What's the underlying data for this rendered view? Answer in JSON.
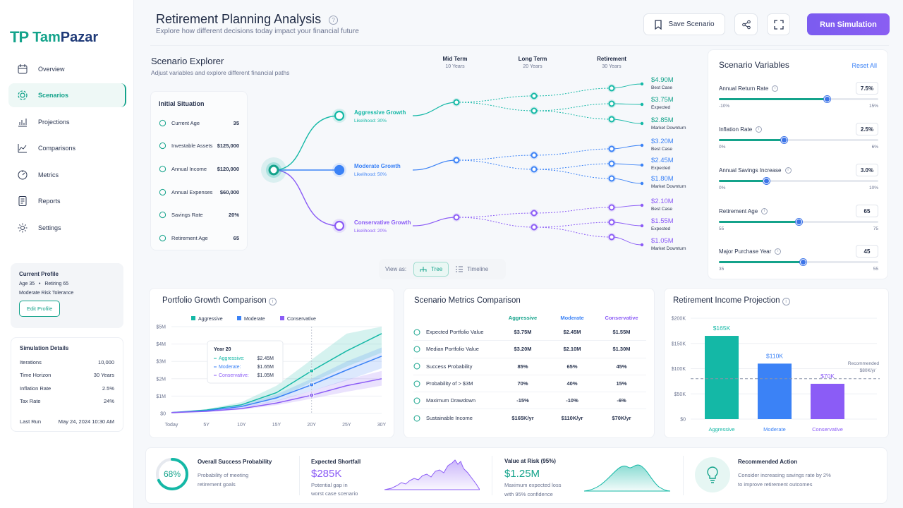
{
  "brand": {
    "mark": "TP",
    "name_a": "Tam",
    "name_b": "Pazar"
  },
  "sidebar": {
    "items": [
      {
        "label": "Overview",
        "icon": "calendar-icon"
      },
      {
        "label": "Scenarios",
        "icon": "gear-icon",
        "active": true
      },
      {
        "label": "Projections",
        "icon": "bar-chart-icon"
      },
      {
        "label": "Comparisons",
        "icon": "line-chart-icon"
      },
      {
        "label": "Metrics",
        "icon": "gauge-icon"
      },
      {
        "label": "Reports",
        "icon": "document-icon"
      },
      {
        "label": "Settings",
        "icon": "settings-icon"
      }
    ],
    "profile": {
      "title": "Current Profile",
      "age": "Age 35",
      "sep": "•",
      "retiring": "Retiring 65",
      "risk": "Moderate Risk Tolerance",
      "edit": "Edit Profile"
    },
    "sim": {
      "title": "Simulation Details",
      "rows": [
        {
          "label": "Iterations",
          "value": "10,000"
        },
        {
          "label": "Time Horizon",
          "value": "30 Years"
        },
        {
          "label": "Inflation Rate",
          "value": "2.5%"
        },
        {
          "label": "Tax Rate",
          "value": "24%"
        }
      ],
      "last_run_label": "Last Run",
      "last_run_value": "May 24, 2024   10:30 AM"
    }
  },
  "header": {
    "title": "Retirement Planning Analysis",
    "subtitle": "Explore how different decisions today impact your financial future",
    "save": "Save Scenario",
    "run": "Run Simulation"
  },
  "explorer": {
    "title": "Scenario Explorer",
    "subtitle": "Adjust variables and explore different financial paths",
    "columns": [
      {
        "label": "Mid Term",
        "sub": "10 Years"
      },
      {
        "label": "Long Term",
        "sub": "20 Years"
      },
      {
        "label": "Retirement",
        "sub": "30 Years"
      }
    ],
    "initial_title": "Initial Situation",
    "initial": [
      {
        "label": "Current Age",
        "value": "35",
        "icon": "clock-icon"
      },
      {
        "label": "Investable Assets",
        "value": "$125,000",
        "icon": "coins-icon"
      },
      {
        "label": "Annual Income",
        "value": "$120,000",
        "icon": "wallet-icon"
      },
      {
        "label": "Annual Expenses",
        "value": "$60,000",
        "icon": "expense-icon"
      },
      {
        "label": "Savings Rate",
        "value": "20%",
        "icon": "percent-icon"
      },
      {
        "label": "Retirement Age",
        "value": "65",
        "icon": "flag-icon"
      }
    ],
    "branches": [
      {
        "name": "Aggressive Growth",
        "likelihood": "Likelihood: 30%",
        "color": "#14b8a6"
      },
      {
        "name": "Moderate Growth",
        "likelihood": "Likelihood: 50%",
        "color": "#3b82f6"
      },
      {
        "name": "Conservative Growth",
        "likelihood": "Likelihood: 20%",
        "color": "#8b5cf6"
      }
    ],
    "outcomes": [
      {
        "value": "$4.90M",
        "label": "Best Case",
        "color": "#14a38b"
      },
      {
        "value": "$3.75M",
        "label": "Expected",
        "color": "#14a38b"
      },
      {
        "value": "$2.85M",
        "label": "Market Downturn",
        "color": "#14a38b"
      },
      {
        "value": "$3.20M",
        "label": "Best Case",
        "color": "#3b82f6"
      },
      {
        "value": "$2.45M",
        "label": "Expected",
        "color": "#3b82f6"
      },
      {
        "value": "$1.80M",
        "label": "Market Downturn",
        "color": "#3b82f6"
      },
      {
        "value": "$2.10M",
        "label": "Best Case",
        "color": "#8b5cf6"
      },
      {
        "value": "$1.55M",
        "label": "Expected",
        "color": "#8b5cf6"
      },
      {
        "value": "$1.05M",
        "label": "Market Downturn",
        "color": "#8b5cf6"
      }
    ],
    "view_as": "View as:",
    "view_tree": "Tree",
    "view_timeline": "Timeline"
  },
  "variables": {
    "title": "Scenario Variables",
    "reset": "Reset All",
    "items": [
      {
        "label": "Annual Return Rate",
        "value": "7.5%",
        "min": "-10%",
        "max": "15%",
        "level": 0.68
      },
      {
        "label": "Inflation Rate",
        "value": "2.5%",
        "min": "0%",
        "max": "6%",
        "level": 0.41
      },
      {
        "label": "Annual Savings Increase",
        "value": "3.0%",
        "min": "0%",
        "max": "10%",
        "level": 0.3
      },
      {
        "label": "Retirement Age",
        "value": "65",
        "min": "55",
        "max": "75",
        "level": 0.5
      },
      {
        "label": "Major Purchase Year",
        "value": "45",
        "min": "35",
        "max": "55",
        "level": 0.53
      }
    ]
  },
  "portfolio": {
    "title": "Portfolio Growth Comparison",
    "legend": [
      "Aggressive",
      "Moderate",
      "Conservative"
    ],
    "tooltip": {
      "title": "Year 20",
      "rows": [
        {
          "label": "Aggressive:",
          "value": "$2.45M"
        },
        {
          "label": "Moderate:",
          "value": "$1.65M"
        },
        {
          "label": "Conservative:",
          "value": "$1.05M"
        }
      ]
    }
  },
  "metrics": {
    "title": "Scenario Metrics Comparison",
    "headers": [
      "Aggressive",
      "Moderate",
      "Conservative"
    ],
    "header_colors": [
      "#14a38b",
      "#3b82f6",
      "#8b5cf6"
    ],
    "rows": [
      {
        "label": "Expected Portfolio Value",
        "icon": "target-icon",
        "vals": [
          "$3.75M",
          "$2.45M",
          "$1.55M"
        ]
      },
      {
        "label": "Median Portfolio Value",
        "icon": "median-icon",
        "vals": [
          "$3.20M",
          "$2.10M",
          "$1.30M"
        ]
      },
      {
        "label": "Success Probability",
        "icon": "shield-icon",
        "vals": [
          "85%",
          "65%",
          "45%"
        ]
      },
      {
        "label": "Probability of > $3M",
        "icon": "trend-icon",
        "vals": [
          "70%",
          "40%",
          "15%"
        ]
      },
      {
        "label": "Maximum Drawdown",
        "icon": "drawdown-icon",
        "vals": [
          "-15%",
          "-10%",
          "-6%"
        ]
      },
      {
        "label": "Sustainable Income",
        "icon": "dollar-icon",
        "vals": [
          "$165K/yr",
          "$110K/yr",
          "$70K/yr"
        ]
      }
    ]
  },
  "income": {
    "title": "Retirement Income Projection",
    "recommended": [
      "Recommended",
      "$80K/yr"
    ]
  },
  "bottom": {
    "success": {
      "pct": "68%",
      "title": "Overall Success Probability",
      "desc1": "Probability of meeting",
      "desc2": "retirement goals",
      "level": 0.68
    },
    "shortfall": {
      "title": "Expected Shortfall",
      "value": "$285K",
      "desc1": "Potential gap in",
      "desc2": "worst case scenario"
    },
    "var": {
      "title": "Value at Risk (95%)",
      "value": "$1.25M",
      "desc1": "Maximum expected loss",
      "desc2": "with 95% confidence"
    },
    "action": {
      "title": "Recommended Action",
      "desc1": "Consider increasing savings rate by 2%",
      "desc2": "to improve retirement outcomes"
    }
  },
  "chart_data": [
    {
      "type": "area",
      "title": "Portfolio Growth Comparison",
      "x": [
        "Today",
        "5Y",
        "10Y",
        "15Y",
        "20Y",
        "25Y",
        "30Y"
      ],
      "y_ticks": [
        "$0",
        "$1M",
        "$2M",
        "$3M",
        "$4M",
        "$5M"
      ],
      "ylim": [
        0,
        5
      ],
      "series": [
        {
          "name": "Aggressive",
          "color": "#14b8a6",
          "values": [
            0.05,
            0.2,
            0.5,
            1.2,
            2.45,
            3.6,
            4.6
          ],
          "upper": [
            0.05,
            0.25,
            0.65,
            1.6,
            3.1,
            4.6,
            5.0
          ],
          "lower": [
            0.05,
            0.16,
            0.38,
            0.85,
            1.8,
            2.7,
            3.5
          ]
        },
        {
          "name": "Moderate",
          "color": "#3b82f6",
          "values": [
            0.05,
            0.16,
            0.4,
            0.9,
            1.65,
            2.5,
            3.3
          ],
          "upper": [
            0.05,
            0.2,
            0.5,
            1.1,
            2.0,
            3.0,
            3.8
          ],
          "lower": [
            0.05,
            0.13,
            0.32,
            0.7,
            1.3,
            1.9,
            2.6
          ]
        },
        {
          "name": "Conservative",
          "color": "#8b5cf6",
          "values": [
            0.05,
            0.12,
            0.28,
            0.6,
            1.05,
            1.6,
            2.0
          ],
          "upper": [
            0.05,
            0.14,
            0.35,
            0.75,
            1.3,
            1.95,
            2.45
          ],
          "lower": [
            0.05,
            0.1,
            0.22,
            0.48,
            0.85,
            1.25,
            1.6
          ]
        }
      ]
    },
    {
      "type": "bar",
      "title": "Retirement Income Projection",
      "categories": [
        "Aggressive",
        "Moderate",
        "Conservative"
      ],
      "values": [
        165,
        110,
        70
      ],
      "value_labels": [
        "$165K",
        "$110K",
        "$70K"
      ],
      "colors": [
        "#14b8a6",
        "#3b82f6",
        "#8b5cf6"
      ],
      "y_ticks": [
        "$0",
        "$50K",
        "$100K",
        "$150K",
        "$200K"
      ],
      "ylim": [
        0,
        200
      ],
      "reference_line": 80
    }
  ]
}
